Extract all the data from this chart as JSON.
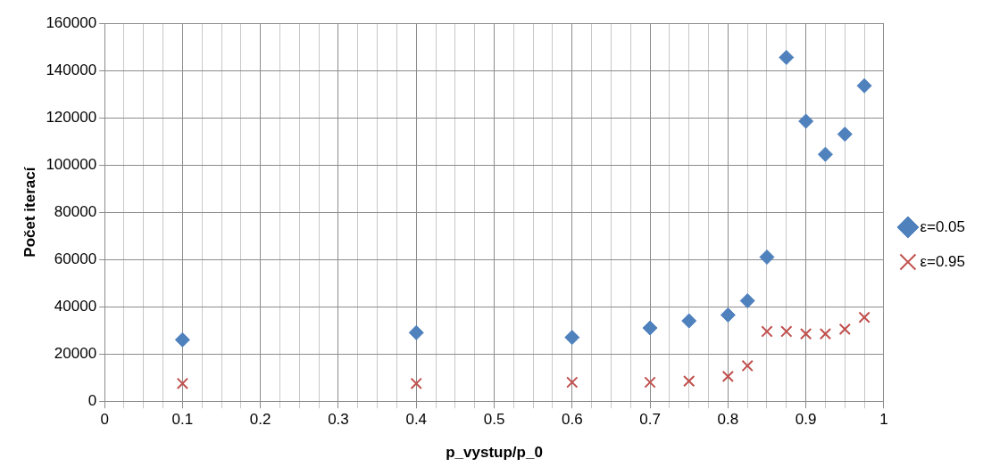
{
  "chart_data": {
    "type": "scatter",
    "xlabel": "p_vystup/p_0",
    "ylabel": "Počet iterací",
    "xlim": [
      0,
      1
    ],
    "ylim": [
      0,
      160000
    ],
    "xticks": [
      0,
      {
        "value": 0.025,
        "label": null
      },
      {
        "value": 0.05,
        "label": null
      },
      {
        "value": 0.075,
        "label": null
      },
      0.1,
      {
        "value": 0.125,
        "label": null
      },
      {
        "value": 0.15,
        "label": null
      },
      {
        "value": 0.175,
        "label": null
      },
      0.2,
      {
        "value": 0.225,
        "label": null
      },
      {
        "value": 0.25,
        "label": null
      },
      {
        "value": 0.275,
        "label": null
      },
      0.3,
      {
        "value": 0.325,
        "label": null
      },
      {
        "value": 0.35,
        "label": null
      },
      {
        "value": 0.375,
        "label": null
      },
      0.4,
      {
        "value": 0.425,
        "label": null
      },
      {
        "value": 0.45,
        "label": null
      },
      {
        "value": 0.475,
        "label": null
      },
      0.5,
      {
        "value": 0.525,
        "label": null
      },
      {
        "value": 0.55,
        "label": null
      },
      {
        "value": 0.575,
        "label": null
      },
      0.6,
      {
        "value": 0.625,
        "label": null
      },
      {
        "value": 0.65,
        "label": null
      },
      {
        "value": 0.675,
        "label": null
      },
      0.7,
      {
        "value": 0.725,
        "label": null
      },
      {
        "value": 0.75,
        "label": null
      },
      {
        "value": 0.775,
        "label": null
      },
      0.8,
      {
        "value": 0.825,
        "label": null
      },
      {
        "value": 0.85,
        "label": null
      },
      {
        "value": 0.875,
        "label": null
      },
      0.9,
      {
        "value": 0.925,
        "label": null
      },
      {
        "value": 0.95,
        "label": null
      },
      {
        "value": 0.975,
        "label": null
      },
      1
    ],
    "yticks": [
      0,
      20000,
      40000,
      60000,
      80000,
      100000,
      120000,
      140000,
      160000
    ],
    "grid": true,
    "legend": "right",
    "x": [
      0.1,
      0.4,
      0.6,
      0.7,
      0.75,
      0.8,
      0.825,
      0.85,
      0.875,
      0.9,
      0.925,
      0.95,
      0.975
    ],
    "series": [
      {
        "name": "ε=0.05",
        "color": "#4f81bd",
        "marker": "diamond",
        "values": [
          26000,
          29000,
          27000,
          31000,
          34000,
          36500,
          42500,
          61000,
          145500,
          118500,
          104500,
          113000,
          133500
        ]
      },
      {
        "name": "ε=0.95",
        "color": "#c0504d",
        "marker": "cross",
        "values": [
          7500,
          7500,
          8000,
          8000,
          8500,
          10500,
          15000,
          29500,
          29500,
          28500,
          28500,
          30500,
          35500
        ]
      }
    ]
  }
}
